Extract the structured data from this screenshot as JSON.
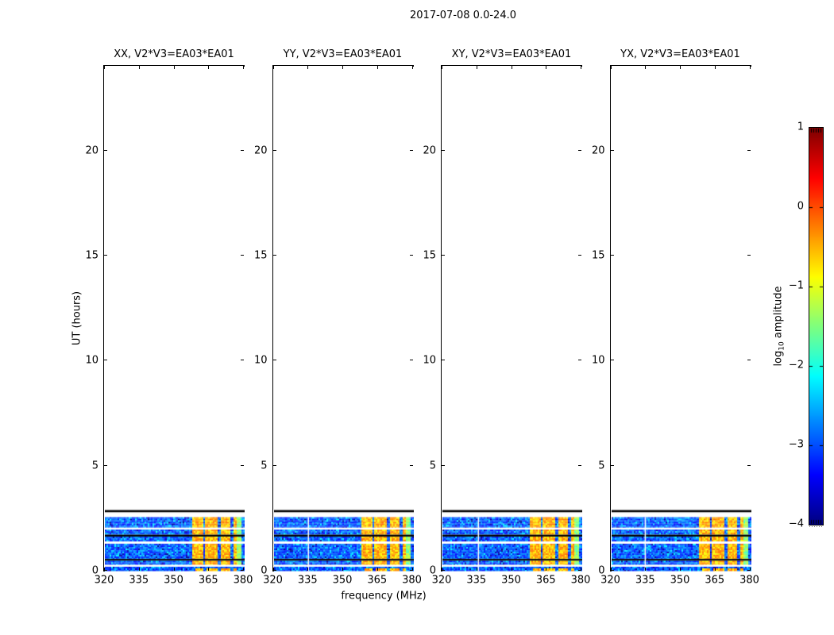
{
  "chart_data": {
    "type": "heatmap",
    "title": "2017-07-08 0.0-24.0",
    "xlabel": "frequency (MHz)",
    "ylabel": "UT (hours)",
    "x_ticks": [
      "320",
      "335",
      "350",
      "365",
      "380"
    ],
    "x_tick_values": [
      320,
      335,
      350,
      365,
      380
    ],
    "x_range": [
      320,
      380
    ],
    "y_ticks": [
      "0",
      "5",
      "10",
      "15",
      "20"
    ],
    "y_tick_values": [
      0,
      5,
      10,
      15,
      20
    ],
    "y_range": [
      0,
      24
    ],
    "grid": false,
    "panels": [
      {
        "id": "xx",
        "title": "XX, V2*V3=EA03*EA01",
        "white_channel_mhz": null
      },
      {
        "id": "yy",
        "title": "YY, V2*V3=EA03*EA01",
        "white_channel_mhz": 334.5
      },
      {
        "id": "xy",
        "title": "XY, V2*V3=EA03*EA01",
        "white_channel_mhz": 335.2
      },
      {
        "id": "yx",
        "title": "YX, V2*V3=EA03*EA01",
        "white_channel_mhz": 334.2
      }
    ],
    "colorbar": {
      "label_prefix": "log",
      "label_sub": "10",
      "label_suffix": " amplitude",
      "ticks": [
        "1",
        "0",
        "−1",
        "−2",
        "−3",
        "−4"
      ],
      "tick_values": [
        1,
        0,
        -1,
        -2,
        -3,
        -4
      ],
      "range": [
        -4,
        1
      ],
      "colormap": "jet"
    },
    "spectrogram": {
      "occupied_hours": [
        0,
        2.92
      ],
      "noise_floor_log10_amplitude": -3.0,
      "rfi_band_mhz": [
        357.5,
        376.5
      ],
      "rfi_log10_amplitude": -0.7,
      "rfi_green_edge_mhz": [
        376.5,
        378.5
      ],
      "rfi_notch_mhz": [
        362.3,
        368.5,
        374.2
      ],
      "time_bands": [
        {
          "type": "black",
          "hours": [
            2.82,
            2.92
          ]
        },
        {
          "type": "noise",
          "hours": [
            2.09,
            2.58
          ]
        },
        {
          "type": "noise",
          "hours": [
            1.75,
            1.99
          ]
        },
        {
          "type": "black",
          "hours": [
            1.655,
            1.75
          ]
        },
        {
          "type": "noise",
          "hours": [
            1.43,
            1.655
          ]
        },
        {
          "type": "noise",
          "hours": [
            0.6,
            1.315
          ]
        },
        {
          "type": "black",
          "hours": [
            0.508,
            0.6
          ]
        },
        {
          "type": "noise",
          "hours": [
            0.32,
            0.508
          ]
        },
        {
          "type": "blobs",
          "hours": [
            0.02,
            0.225
          ],
          "blob_ranges_mhz": [
            [
              358.4,
              361.9
            ],
            [
              363.1,
              367.9
            ],
            [
              369.1,
              373.7
            ],
            [
              374.9,
              377.5
            ]
          ]
        }
      ]
    }
  }
}
